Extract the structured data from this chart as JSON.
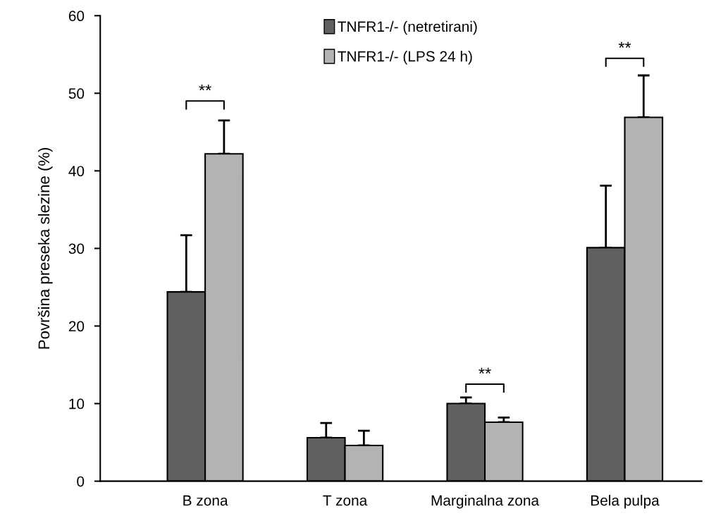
{
  "chart_data": {
    "type": "bar",
    "ylabel": "Površina preseka slezine (%)",
    "categories": [
      "B zona",
      "T zona",
      "Marginalna zona",
      "Bela pulpa"
    ],
    "series": [
      {
        "name": "TNFR1-/- (netretirani)",
        "color": "#606060",
        "values": [
          24.4,
          5.6,
          10.0,
          30.1
        ],
        "errors": [
          [
            24.4,
            31.7
          ],
          [
            5.6,
            7.5
          ],
          [
            10.0,
            10.8
          ],
          [
            30.1,
            38.1
          ]
        ]
      },
      {
        "name": "TNFR1-/- (LPS 24 h)",
        "color": "#b3b3b3",
        "values": [
          42.2,
          4.6,
          7.6,
          46.9
        ],
        "errors": [
          [
            42.2,
            46.5
          ],
          [
            4.6,
            6.5
          ],
          [
            7.6,
            8.2
          ],
          [
            46.9,
            52.3
          ]
        ]
      }
    ],
    "annotations": [
      "**",
      "**",
      "**"
    ],
    "ylim": [
      0,
      60
    ],
    "yticks": [
      0,
      10,
      20,
      30,
      40,
      50,
      60
    ],
    "legend": "top",
    "grid": false
  }
}
